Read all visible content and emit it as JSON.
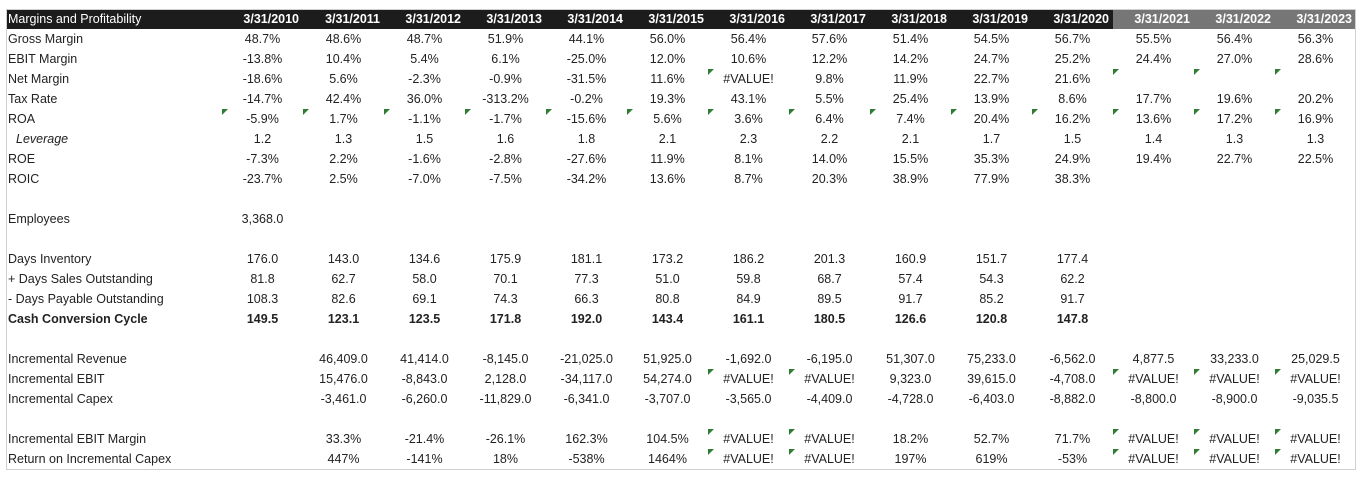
{
  "sheet": {
    "title": "Margins and Profitability",
    "historical_dates": [
      "3/31/2010",
      "3/31/2011",
      "3/31/2012",
      "3/31/2013",
      "3/31/2014",
      "3/31/2015",
      "3/31/2016",
      "3/31/2017",
      "3/31/2018",
      "3/31/2019",
      "3/31/2020"
    ],
    "projected_dates": [
      "3/31/2021",
      "3/31/2022",
      "3/31/2023"
    ],
    "colors": {
      "header_dark": "#1c1c1c",
      "header_projected": "#767676",
      "flag_green": "#2e7d32"
    },
    "rows": [
      {
        "label": "Gross Margin",
        "values": [
          "48.7%",
          "48.6%",
          "48.7%",
          "51.9%",
          "44.1%",
          "56.0%",
          "56.4%",
          "57.6%",
          "51.4%",
          "54.5%",
          "56.7%",
          "55.5%",
          "56.4%",
          "56.3%"
        ]
      },
      {
        "label": "EBIT Margin",
        "values": [
          "-13.8%",
          "10.4%",
          "5.4%",
          "6.1%",
          "-25.0%",
          "12.0%",
          "10.6%",
          "12.2%",
          "14.2%",
          "24.7%",
          "25.2%",
          "24.4%",
          "27.0%",
          "28.6%"
        ]
      },
      {
        "label": "Net Margin",
        "values": [
          "-18.6%",
          "5.6%",
          "-2.3%",
          "-0.9%",
          "-31.5%",
          "11.6%",
          "#VALUE!",
          "9.8%",
          "11.9%",
          "22.7%",
          "21.6%",
          "",
          "",
          ""
        ],
        "flags": [
          6,
          11,
          12,
          13
        ]
      },
      {
        "label": "Tax Rate",
        "values": [
          "-14.7%",
          "42.4%",
          "36.0%",
          "-313.2%",
          "-0.2%",
          "19.3%",
          "43.1%",
          "5.5%",
          "25.4%",
          "13.9%",
          "8.6%",
          "17.7%",
          "19.6%",
          "20.2%"
        ]
      },
      {
        "label": "ROA",
        "values": [
          "-5.9%",
          "1.7%",
          "-1.1%",
          "-1.7%",
          "-15.6%",
          "5.6%",
          "3.6%",
          "6.4%",
          "7.4%",
          "20.4%",
          "16.2%",
          "13.6%",
          "17.2%",
          "16.9%"
        ],
        "flags": [
          0,
          1,
          2,
          3,
          4,
          5,
          6,
          7,
          8,
          9,
          10,
          11,
          12,
          13
        ]
      },
      {
        "label": "Leverage",
        "indent": true,
        "values": [
          "1.2",
          "1.3",
          "1.5",
          "1.6",
          "1.8",
          "2.1",
          "2.3",
          "2.2",
          "2.1",
          "1.7",
          "1.5",
          "1.4",
          "1.3",
          "1.3"
        ]
      },
      {
        "label": "ROE",
        "values": [
          "-7.3%",
          "2.2%",
          "-1.6%",
          "-2.8%",
          "-27.6%",
          "11.9%",
          "8.1%",
          "14.0%",
          "15.5%",
          "35.3%",
          "24.9%",
          "19.4%",
          "22.7%",
          "22.5%"
        ]
      },
      {
        "label": "ROIC",
        "values": [
          "-23.7%",
          "2.5%",
          "-7.0%",
          "-7.5%",
          "-34.2%",
          "13.6%",
          "8.7%",
          "20.3%",
          "38.9%",
          "77.9%",
          "38.3%",
          "",
          "",
          ""
        ]
      },
      {
        "label": "",
        "values": [
          "",
          "",
          "",
          "",
          "",
          "",
          "",
          "",
          "",
          "",
          "",
          "",
          "",
          ""
        ]
      },
      {
        "label": "Employees",
        "values": [
          "3,368.0",
          "",
          "",
          "",
          "",
          "",
          "",
          "",
          "",
          "",
          "",
          "",
          "",
          ""
        ]
      },
      {
        "label": "",
        "values": [
          "",
          "",
          "",
          "",
          "",
          "",
          "",
          "",
          "",
          "",
          "",
          "",
          "",
          ""
        ]
      },
      {
        "label": "Days Inventory",
        "values": [
          "176.0",
          "143.0",
          "134.6",
          "175.9",
          "181.1",
          "173.2",
          "186.2",
          "201.3",
          "160.9",
          "151.7",
          "177.4",
          "",
          "",
          ""
        ]
      },
      {
        "label": " + Days Sales Outstanding",
        "values": [
          "81.8",
          "62.7",
          "58.0",
          "70.1",
          "77.3",
          "51.0",
          "59.8",
          "68.7",
          "57.4",
          "54.3",
          "62.2",
          "",
          "",
          ""
        ]
      },
      {
        "label": " - Days Payable Outstanding",
        "values": [
          "108.3",
          "82.6",
          "69.1",
          "74.3",
          "66.3",
          "80.8",
          "84.9",
          "89.5",
          "91.7",
          "85.2",
          "91.7",
          "",
          "",
          ""
        ]
      },
      {
        "label": "Cash Conversion Cycle",
        "bold": true,
        "values": [
          "149.5",
          "123.1",
          "123.5",
          "171.8",
          "192.0",
          "143.4",
          "161.1",
          "180.5",
          "126.6",
          "120.8",
          "147.8",
          "",
          "",
          ""
        ]
      },
      {
        "label": "",
        "values": [
          "",
          "",
          "",
          "",
          "",
          "",
          "",
          "",
          "",
          "",
          "",
          "",
          "",
          ""
        ]
      },
      {
        "label": "Incremental Revenue",
        "values": [
          "",
          "46,409.0",
          "41,414.0",
          "-8,145.0",
          "-21,025.0",
          "51,925.0",
          "-1,692.0",
          "-6,195.0",
          "51,307.0",
          "75,233.0",
          "-6,562.0",
          "4,877.5",
          "33,233.0",
          "25,029.5"
        ]
      },
      {
        "label": "Incremental EBIT",
        "values": [
          "",
          "15,476.0",
          "-8,843.0",
          "2,128.0",
          "-34,117.0",
          "54,274.0",
          "#VALUE!",
          "#VALUE!",
          "9,323.0",
          "39,615.0",
          "-4,708.0",
          "#VALUE!",
          "#VALUE!",
          "#VALUE!"
        ],
        "flags": [
          6,
          7,
          11,
          12,
          13
        ]
      },
      {
        "label": "Incremental Capex",
        "values": [
          "",
          "-3,461.0",
          "-6,260.0",
          "-11,829.0",
          "-6,341.0",
          "-3,707.0",
          "-3,565.0",
          "-4,409.0",
          "-4,728.0",
          "-6,403.0",
          "-8,882.0",
          "-8,800.0",
          "-8,900.0",
          "-9,035.5"
        ]
      },
      {
        "label": "",
        "values": [
          "",
          "",
          "",
          "",
          "",
          "",
          "",
          "",
          "",
          "",
          "",
          "",
          "",
          ""
        ]
      },
      {
        "label": "Incremental EBIT Margin",
        "values": [
          "",
          "33.3%",
          "-21.4%",
          "-26.1%",
          "162.3%",
          "104.5%",
          "#VALUE!",
          "#VALUE!",
          "18.2%",
          "52.7%",
          "71.7%",
          "#VALUE!",
          "#VALUE!",
          "#VALUE!"
        ],
        "flags": [
          6,
          7,
          11,
          12,
          13
        ]
      },
      {
        "label": "Return on Incremental Capex",
        "values": [
          "",
          "447%",
          "-141%",
          "18%",
          "-538%",
          "1464%",
          "#VALUE!",
          "#VALUE!",
          "197%",
          "619%",
          "-53%",
          "#VALUE!",
          "#VALUE!",
          "#VALUE!"
        ],
        "flags": [
          6,
          7,
          11,
          12,
          13
        ]
      }
    ]
  }
}
